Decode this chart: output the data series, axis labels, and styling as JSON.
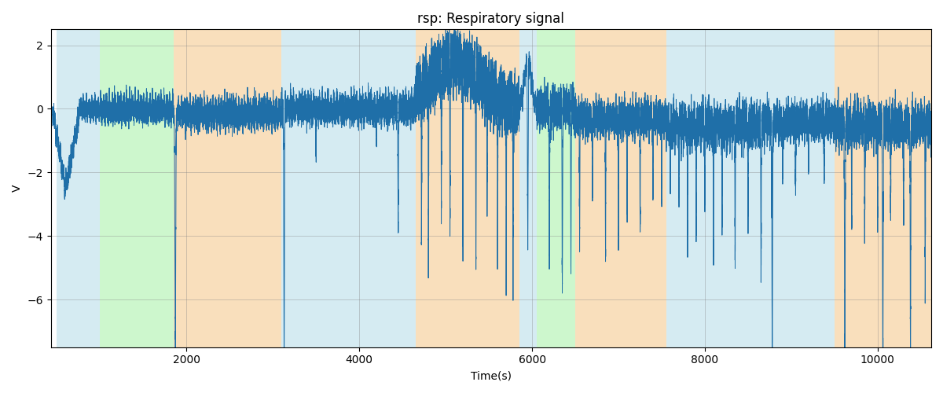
{
  "title": "rsp: Respiratory signal",
  "xlabel": "Time(s)",
  "ylabel": "V",
  "xlim_left": 430,
  "xlim_right": 10620,
  "y_min": -7.5,
  "y_max": 2.5,
  "signal_color": "#1f6fa8",
  "signal_linewidth": 0.7,
  "background_bands": [
    {
      "xmin": 500,
      "xmax": 1000,
      "color": "#add8e6",
      "alpha": 0.5
    },
    {
      "xmin": 1000,
      "xmax": 1850,
      "color": "#90ee90",
      "alpha": 0.45
    },
    {
      "xmin": 1850,
      "xmax": 3100,
      "color": "#f4c07a",
      "alpha": 0.5
    },
    {
      "xmin": 3100,
      "xmax": 4650,
      "color": "#add8e6",
      "alpha": 0.5
    },
    {
      "xmin": 4650,
      "xmax": 5850,
      "color": "#f4c07a",
      "alpha": 0.5
    },
    {
      "xmin": 5850,
      "xmax": 6050,
      "color": "#add8e6",
      "alpha": 0.5
    },
    {
      "xmin": 6050,
      "xmax": 6500,
      "color": "#90ee90",
      "alpha": 0.45
    },
    {
      "xmin": 6500,
      "xmax": 7550,
      "color": "#f4c07a",
      "alpha": 0.5
    },
    {
      "xmin": 7550,
      "xmax": 8700,
      "color": "#add8e6",
      "alpha": 0.5
    },
    {
      "xmin": 8700,
      "xmax": 9500,
      "color": "#add8e6",
      "alpha": 0.5
    },
    {
      "xmin": 9500,
      "xmax": 10650,
      "color": "#f4c07a",
      "alpha": 0.5
    }
  ],
  "yticks": [
    2,
    0,
    -2,
    -4,
    -6
  ],
  "figsize": [
    12,
    5
  ],
  "dpi": 100,
  "random_seed": 99
}
